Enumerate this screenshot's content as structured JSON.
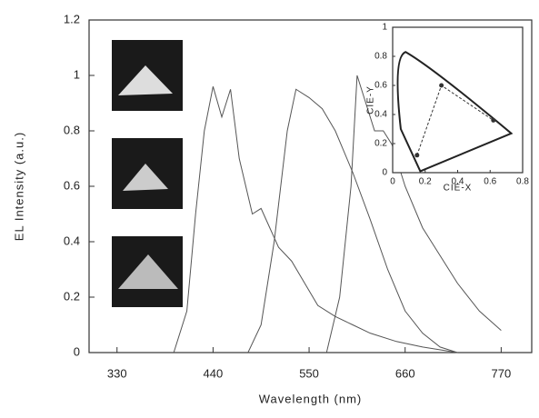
{
  "chart_data": [
    {
      "type": "line",
      "x_label": "Wavelength (nm)",
      "y_label": "EL Intensity (a.u.)",
      "xlim": [
        298,
        805
      ],
      "ylim": [
        0,
        1.2
      ],
      "xticks": [
        330,
        440,
        550,
        660,
        770
      ],
      "yticks": [
        0,
        0.2,
        0.4,
        0.6,
        0.8,
        1,
        1.2
      ],
      "series": [
        {
          "color": "#555555",
          "x": [
            395,
            410,
            420,
            430,
            440,
            450,
            460,
            470,
            485,
            495,
            505,
            515,
            530,
            545,
            560,
            580,
            600,
            620,
            650,
            680,
            720
          ],
          "values": [
            0,
            0.15,
            0.5,
            0.8,
            0.96,
            0.85,
            0.95,
            0.7,
            0.5,
            0.52,
            0.45,
            0.38,
            0.33,
            0.25,
            0.17,
            0.13,
            0.1,
            0.07,
            0.04,
            0.02,
            0
          ]
        },
        {
          "color": "#555555",
          "x": [
            480,
            495,
            510,
            525,
            535,
            550,
            565,
            580,
            600,
            620,
            640,
            660,
            680,
            700,
            720
          ],
          "values": [
            0,
            0.1,
            0.4,
            0.8,
            0.95,
            0.92,
            0.88,
            0.8,
            0.65,
            0.48,
            0.3,
            0.15,
            0.07,
            0.02,
            0
          ]
        },
        {
          "color": "#555555",
          "x": [
            570,
            585,
            598,
            605,
            615,
            625,
            635,
            645,
            660,
            680,
            700,
            720,
            745,
            770
          ],
          "values": [
            0,
            0.2,
            0.6,
            1.0,
            0.9,
            0.8,
            0.8,
            0.75,
            0.6,
            0.45,
            0.35,
            0.25,
            0.15,
            0.08
          ]
        }
      ]
    },
    {
      "type": "scatter",
      "x_label": "CIE-X",
      "y_label": "CIE-Y",
      "xlim": [
        0,
        0.8
      ],
      "ylim": [
        0,
        1
      ],
      "xticks": [
        0,
        0.2,
        0.4,
        0.6,
        0.8
      ],
      "yticks": [
        0,
        0.2,
        0.4,
        0.6,
        0.8,
        1
      ],
      "color": "#333333",
      "x": [
        0.15,
        0.3,
        0.62
      ],
      "y": [
        0.12,
        0.6,
        0.36
      ]
    }
  ]
}
